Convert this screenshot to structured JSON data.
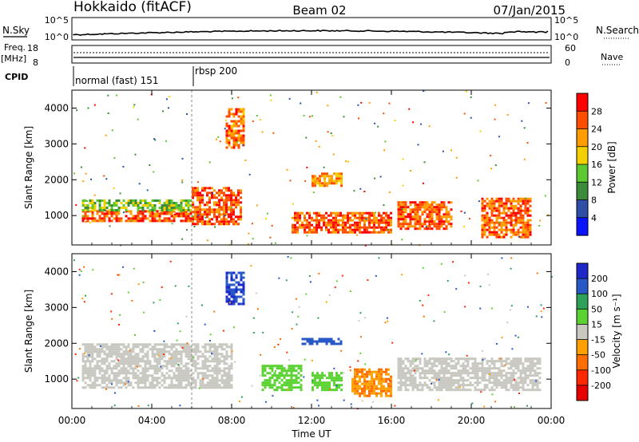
{
  "header": {
    "station": "Hokkaido (fitACF)",
    "beam": "Beam 02",
    "date": "07/Jan/2015"
  },
  "top_panels": {
    "nsky_label": "N.Sky",
    "nsearch_label": "N.Search",
    "freq_label": "Freq.",
    "freq_unit": "[MHz]",
    "nave_label": "Nave",
    "cpid_label": "CPID",
    "left_ticks_noise": [
      "10^5",
      "10^0"
    ],
    "right_ticks_noise": [
      "10^5",
      "10^0"
    ],
    "left_ticks_freq": [
      "18",
      "8"
    ],
    "right_ticks_freq": [
      "60",
      "0"
    ]
  },
  "cpid_modes": [
    {
      "name": "normal (fast) 151",
      "start_hour": 0
    },
    {
      "name": "rbsp 200",
      "start_hour": 6
    }
  ],
  "time_axis": {
    "label": "Time UT",
    "ticks": [
      "00:00",
      "04:00",
      "08:00",
      "12:00",
      "16:00",
      "20:00",
      "00:00"
    ]
  },
  "range_axis": {
    "label": "Slant Range [km]",
    "ticks": [
      "1000",
      "2000",
      "3000",
      "4000"
    ]
  },
  "power_colorbar": {
    "label": "Power [dB]",
    "ticks": [
      "4",
      "8",
      "12",
      "16",
      "20",
      "24",
      "28"
    ],
    "colors": [
      "#0a14ff",
      "#2e4ea8",
      "#3a8c3a",
      "#5cc832",
      "#f5d000",
      "#ff9c00",
      "#ff4e00",
      "#ff0000"
    ]
  },
  "velocity_colorbar": {
    "label": "Velocity [m s⁻¹]",
    "ticks": [
      "200",
      "100",
      "50",
      "15",
      "-15",
      "-50",
      "-100",
      "-200"
    ],
    "colors": [
      "#1e28c8",
      "#2858c8",
      "#2ea05a",
      "#5ad232",
      "#c8c8c0",
      "#ffa000",
      "#ff6e00",
      "#ff2800",
      "#e60000"
    ]
  },
  "chart_data": {
    "type": "heatmap",
    "x_label": "Time UT",
    "y_label": "Slant Range [km]",
    "xlim_hours": [
      0,
      24
    ],
    "ylim_km": [
      180,
      4500
    ],
    "panels": [
      {
        "name": "Power",
        "unit": "dB",
        "regions": [
          {
            "t0": 0.5,
            "t1": 6.0,
            "r0": 850,
            "r1": 1150,
            "value": 26
          },
          {
            "t0": 0.5,
            "t1": 6.0,
            "r0": 1150,
            "r1": 1450,
            "value": 14
          },
          {
            "t0": 6.0,
            "t1": 8.5,
            "r0": 750,
            "r1": 1800,
            "value": 26
          },
          {
            "t0": 7.7,
            "t1": 8.6,
            "r0": 2900,
            "r1": 4000,
            "value": 24
          },
          {
            "t0": 12.0,
            "t1": 13.5,
            "r0": 1800,
            "r1": 2200,
            "value": 22
          },
          {
            "t0": 11.0,
            "t1": 16.0,
            "r0": 500,
            "r1": 1100,
            "value": 26
          },
          {
            "t0": 16.3,
            "t1": 19.0,
            "r0": 600,
            "r1": 1400,
            "value": 26
          },
          {
            "t0": 20.5,
            "t1": 23.0,
            "r0": 400,
            "r1": 1500,
            "value": 25
          }
        ]
      },
      {
        "name": "Velocity",
        "unit": "m s^-1",
        "regions": [
          {
            "t0": 0.5,
            "t1": 8.0,
            "r0": 750,
            "r1": 2000,
            "value": 0
          },
          {
            "t0": 7.7,
            "t1": 8.6,
            "r0": 3100,
            "r1": 4000,
            "value": 200
          },
          {
            "t0": 11.5,
            "t1": 13.5,
            "r0": 1950,
            "r1": 2150,
            "value": 150
          },
          {
            "t0": 9.5,
            "t1": 11.5,
            "r0": 700,
            "r1": 1400,
            "value": 40
          },
          {
            "t0": 12.0,
            "t1": 13.5,
            "r0": 700,
            "r1": 1200,
            "value": 40
          },
          {
            "t0": 14.0,
            "t1": 16.0,
            "r0": 500,
            "r1": 1300,
            "value": -50
          },
          {
            "t0": 16.3,
            "t1": 23.5,
            "r0": 700,
            "r1": 1600,
            "value": 0
          }
        ]
      }
    ]
  }
}
